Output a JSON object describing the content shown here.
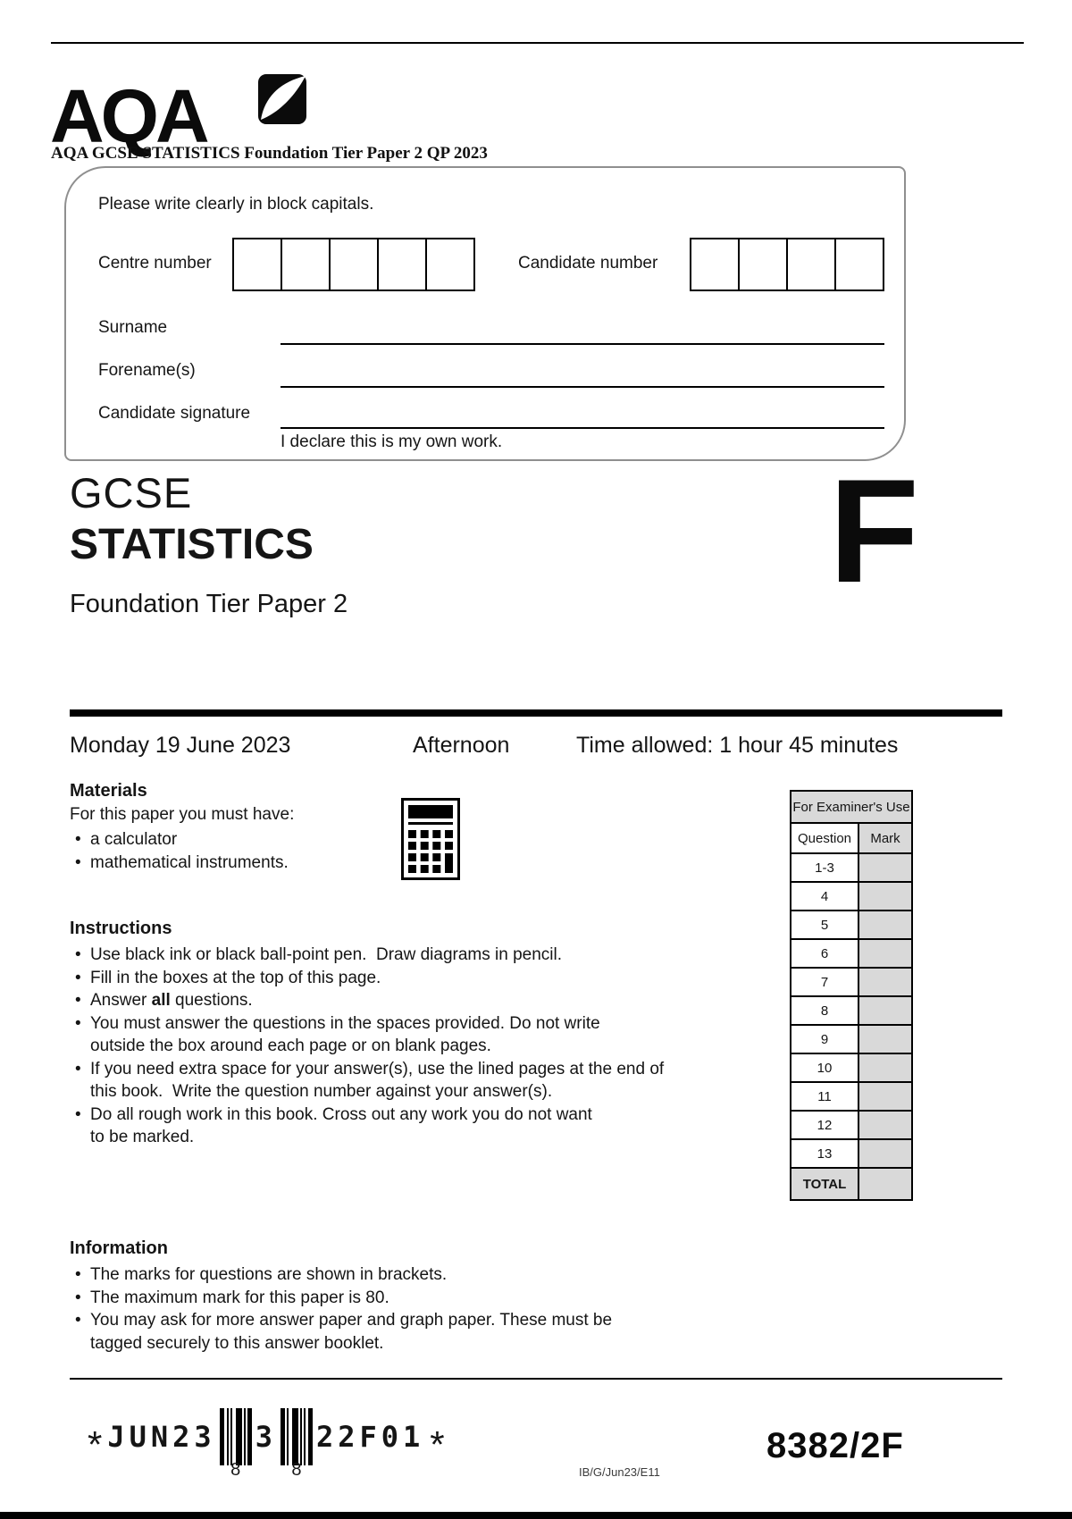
{
  "logo": {
    "text": "AQA"
  },
  "watermark_title": "AQA GCSE STATISTICS Foundation Tier Paper 2 QP 2023",
  "candidate_box": {
    "instruction": "Please write clearly in block capitals.",
    "centre_number_label": "Centre number",
    "centre_number_box_count": 5,
    "candidate_number_label": "Candidate number",
    "candidate_number_box_count": 4,
    "surname_label": "Surname",
    "forename_label": "Forename(s)",
    "signature_label": "Candidate signature",
    "declaration": "I declare this is my own work."
  },
  "title": {
    "qualification": "GCSE",
    "subject": "STATISTICS",
    "tier": "Foundation Tier  Paper 2",
    "tier_letter": "F"
  },
  "session": {
    "date": "Monday 19 June 2023",
    "time_of_day": "Afternoon",
    "time_allowed": "Time allowed: 1 hour 45 minutes"
  },
  "materials": {
    "heading": "Materials",
    "intro": "For this paper you must have:",
    "items": [
      "a calculator",
      "mathematical instruments."
    ]
  },
  "instructions": {
    "heading": "Instructions",
    "items": [
      "Use black ink or black ball-point pen.  Draw diagrams in pencil.",
      "Fill in the boxes at the top of this page.",
      {
        "segments": [
          {
            "text": "Answer "
          },
          {
            "text": "all",
            "bold": true
          },
          {
            "text": " questions."
          }
        ]
      },
      "You must answer the questions in the spaces provided. Do not write\noutside the box around each page or on blank pages.",
      "If you need extra space for your answer(s), use the lined pages at the end of\nthis book.  Write the question number against your answer(s).",
      "Do all rough work in this book. Cross out any work you do not want\nto be marked."
    ]
  },
  "information": {
    "heading": "Information",
    "items": [
      "The marks for questions are shown in brackets.",
      "The maximum mark for this paper is 80.",
      "You may ask for more answer paper and graph paper. These must be\ntagged securely to this answer booklet."
    ]
  },
  "examiner_table": {
    "title": "For Examiner's Use",
    "question_header": "Question",
    "mark_header": "Mark",
    "rows": [
      "1-3",
      "4",
      "5",
      "6",
      "7",
      "8",
      "9",
      "10",
      "11",
      "12",
      "13"
    ],
    "total_label": "TOTAL"
  },
  "barcode": {
    "star": "*",
    "prefix": "JUN23",
    "mid": "3",
    "suffix": "22F01",
    "left_sub": "8",
    "right_sub": "8",
    "left_bars": [
      [
        5,
        3
      ],
      [
        2,
        2
      ],
      [
        2,
        4
      ],
      [
        7,
        2
      ],
      [
        2,
        2
      ],
      [
        5,
        0
      ]
    ],
    "right_bars": [
      [
        5,
        2
      ],
      [
        2,
        4
      ],
      [
        7,
        2
      ],
      [
        2,
        2
      ],
      [
        2,
        3
      ],
      [
        5,
        0
      ]
    ]
  },
  "footer": {
    "imprint": "IB/G/Jun23/E11",
    "paper_code": "8382/2F"
  },
  "misc": {
    "bullet_char": "•"
  },
  "colors": {
    "ink": "#151515",
    "rule": "#000000",
    "table_grey": "#d9d9d9",
    "box_border": "#8f8f8f"
  }
}
